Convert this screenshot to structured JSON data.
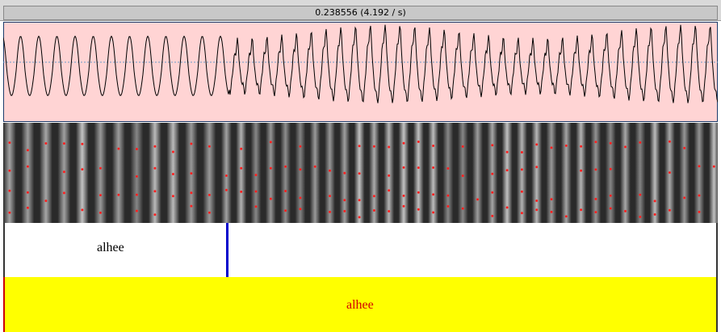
{
  "header": {
    "selection": "0.238556 (4.192 / s)"
  },
  "tiers": [
    {
      "intervals": [
        {
          "label": "alhee"
        }
      ]
    },
    {
      "intervals": [
        {
          "label": "alhee"
        }
      ]
    }
  ]
}
